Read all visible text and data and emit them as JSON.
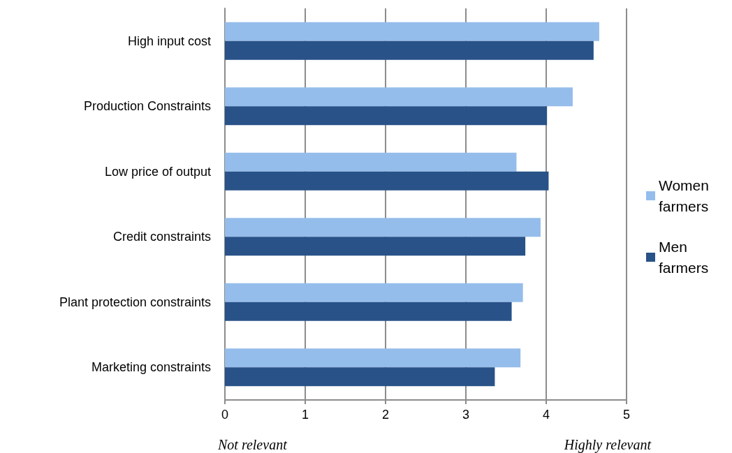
{
  "chart_data": {
    "type": "bar",
    "orientation": "horizontal",
    "categories": [
      "High input cost",
      "Production Constraints",
      "Low price of output",
      "Credit constraints",
      "Plant protection constraints",
      "Marketing constraints"
    ],
    "series": [
      {
        "name": "Women farmers",
        "color": "#95bdeb",
        "values": [
          4.66,
          4.33,
          3.63,
          3.93,
          3.71,
          3.68
        ]
      },
      {
        "name": "Men farmers",
        "color": "#285288",
        "values": [
          4.59,
          4.01,
          4.03,
          3.74,
          3.57,
          3.36
        ]
      }
    ],
    "xlim": [
      0,
      5
    ],
    "xticks": [
      0,
      1,
      2,
      3,
      4,
      5
    ],
    "grid": "x",
    "legend": "right",
    "annotations": [
      "Not relevant",
      "Highly relevant"
    ]
  }
}
